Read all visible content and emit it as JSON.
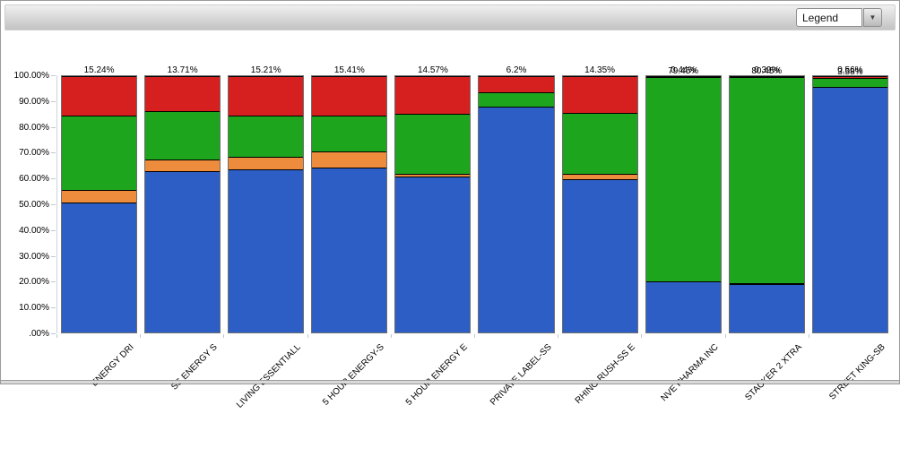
{
  "toolbar": {
    "legend_label": "Legend",
    "dropdown_icon": "▼"
  },
  "colors": {
    "blue": "#2D5EC5",
    "orange": "#ED8C3D",
    "green": "#1EA51E",
    "red": "#D62020",
    "bar_border": "#6e6e6e",
    "segment_line": "#000000",
    "tick": "#bcc8d4"
  },
  "chart_data": {
    "type": "bar",
    "subtype": "100-percent-stacked",
    "title": "",
    "xlabel": "",
    "ylabel": "",
    "ylim": [
      0,
      100
    ],
    "grid": false,
    "legend_position": "collapsed-dropdown",
    "y_tick_labels": [
      "100.00%",
      "90.00%",
      "80.00%",
      "70.00%",
      "60.00%",
      "50.00%",
      "40.00%",
      "30.00%",
      "20.00%",
      "10.00%",
      ".00%"
    ],
    "categories": [
      "ENERGY DRI",
      "SS ENERGY S",
      "LIVING ESSENTIALL",
      "5 HOUR ENERGY-S",
      "5 HOUR ENERGY E",
      "PRIVATE LABEL-SS",
      "RHINO RUSH-SS E",
      "NVE PHARMA INC",
      "STACKER 2 XTRA",
      "STREET KING-SB"
    ],
    "series": [
      {
        "name": "series-blue",
        "color": "#2D5EC5",
        "values": [
          50.81,
          62.91,
          63.49,
          64.34,
          60.68,
          88.04,
          59.91,
          19.93,
          18.93,
          95.86
        ],
        "labels": [
          "50.81%",
          "62.91%",
          "63.49%",
          "64.34%",
          "60.68%",
          "88.04%",
          "59.91%",
          "19.93%",
          "18.93%",
          "95.86%"
        ]
      },
      {
        "name": "series-orange",
        "color": "#ED8C3D",
        "values": [
          4.82,
          4.45,
          5.02,
          6.16,
          1.27,
          0.25,
          1.94,
          0.18,
          0.23,
          0
        ],
        "labels": [
          "4.82%",
          "4.45%",
          "5.02%",
          "6.16%",
          "1.27%",
          "0.25%",
          "1.94%",
          "0.18%",
          "0.23%",
          ""
        ]
      },
      {
        "name": "series-green",
        "color": "#1EA51E",
        "values": [
          29.13,
          18.93,
          16.27,
          14.1,
          23.48,
          5.51,
          23.79,
          79.45,
          80.45,
          3.58
        ],
        "labels": [
          "29.13%",
          "18.93%",
          "16.27%",
          "14.1%",
          "23.48%",
          "5.51%",
          "23.79%",
          "79.45%",
          "80.45%",
          "3.58%"
        ]
      },
      {
        "name": "series-red",
        "color": "#D62020",
        "values": [
          15.24,
          13.71,
          15.21,
          15.41,
          14.57,
          6.2,
          14.35,
          0.44,
          0.39,
          0.56
        ],
        "labels": [
          "15.24%",
          "13.71%",
          "15.21%",
          "15.41%",
          "14.57%",
          "6.2%",
          "14.35%",
          "0.44%",
          "0.39%",
          "0.56%"
        ]
      }
    ]
  }
}
